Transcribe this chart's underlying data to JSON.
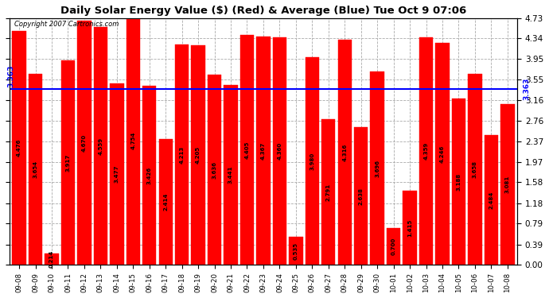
{
  "title": "Daily Solar Energy Value ($) (Red) & Average (Blue) Tue Oct 9 07:06",
  "copyright": "Copyright 2007 Cartronics.com",
  "average": 3.363,
  "bar_color": "#FF0000",
  "average_color": "#0000FF",
  "background_color": "#FFFFFF",
  "plot_bg_color": "#FFFFFF",
  "categories": [
    "09-08",
    "09-09",
    "09-10",
    "09-11",
    "09-12",
    "09-13",
    "09-14",
    "09-15",
    "09-16",
    "09-17",
    "09-18",
    "09-19",
    "09-20",
    "09-21",
    "09-22",
    "09-23",
    "09-24",
    "09-25",
    "09-26",
    "09-27",
    "09-28",
    "09-29",
    "09-30",
    "10-01",
    "10-02",
    "10-03",
    "10-04",
    "10-05",
    "10-06",
    "10-07",
    "10-08"
  ],
  "values": [
    4.476,
    3.654,
    0.214,
    3.917,
    4.67,
    4.559,
    3.477,
    4.754,
    3.426,
    2.414,
    4.213,
    4.205,
    3.636,
    3.441,
    4.405,
    4.367,
    4.36,
    0.535,
    3.98,
    2.791,
    4.316,
    2.638,
    3.696,
    0.7,
    1.415,
    4.359,
    4.246,
    3.188,
    3.658,
    2.484,
    3.081
  ],
  "ylim": [
    0,
    4.73
  ],
  "yticks": [
    0.0,
    0.39,
    0.79,
    1.18,
    1.58,
    1.97,
    2.37,
    2.76,
    3.16,
    3.55,
    3.95,
    4.34,
    4.73
  ],
  "grid_color": "#AAAAAA",
  "label_color": "#000000",
  "value_label_color": "#000000",
  "avg_label": "3.363",
  "fig_bg": "#FFFFFF",
  "title_color": "#000000"
}
